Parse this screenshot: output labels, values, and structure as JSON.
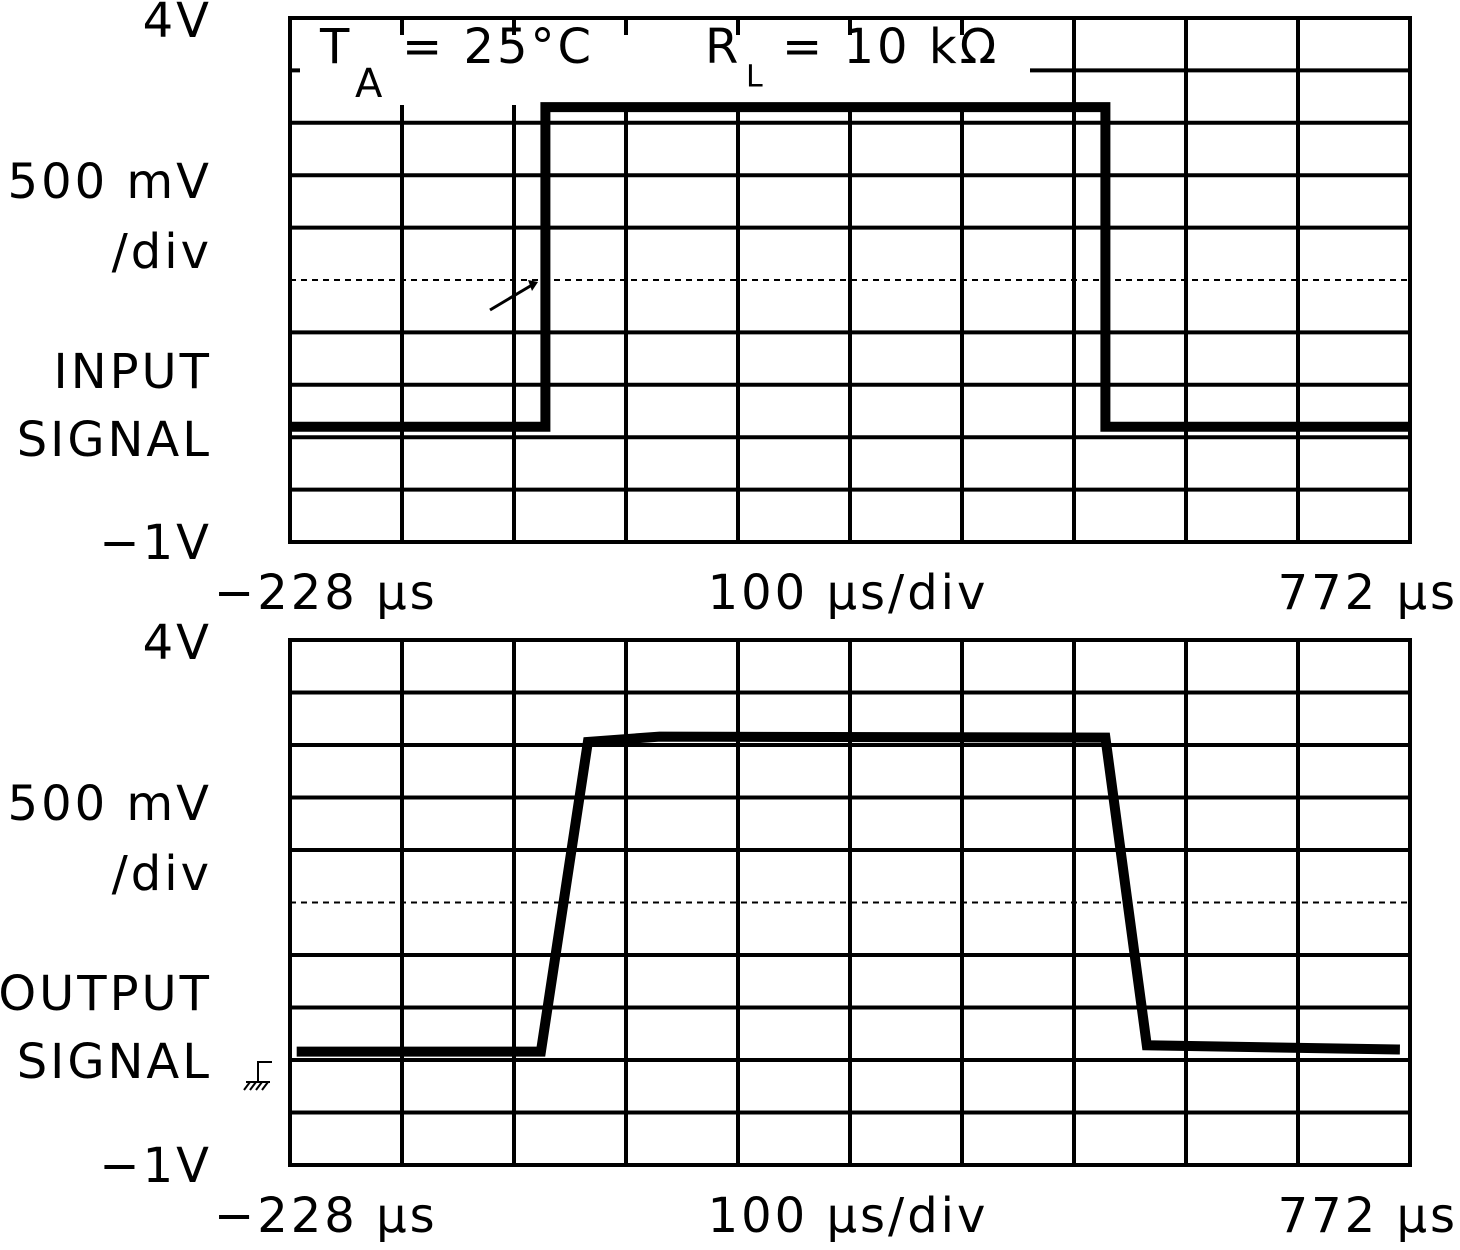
{
  "chart_data": [
    {
      "type": "line",
      "color": "#000000",
      "y_label": [
        "500 mV",
        "/div"
      ],
      "signal_label": [
        "INPUT",
        "SIGNAL"
      ],
      "annotation": [
        "T",
        "A",
        "= 25°C",
        "R",
        "L",
        "= 10 kΩ"
      ],
      "x_label": "100 µs/div",
      "x": [
        -228,
        0,
        0,
        500,
        500,
        772
      ],
      "values": [
        0.1,
        0.1,
        3.15,
        3.15,
        0.1,
        0.1
      ],
      "xlim": [
        -228,
        772
      ],
      "ylim": [
        -1,
        4
      ],
      "xticks": [
        {
          "value": -228,
          "label": "−228 µs"
        },
        {
          "value": 772,
          "label": "772 µs"
        }
      ],
      "yticks": [
        {
          "value": 4,
          "label": "4V"
        },
        {
          "value": -1,
          "label": "−1V"
        }
      ]
    },
    {
      "type": "line",
      "color": "#000000",
      "y_label": [
        "500 mV",
        "/div"
      ],
      "signal_label": [
        "OUTPUT",
        "SIGNAL"
      ],
      "x_label": "100 µs/div",
      "x": [
        -222,
        -4,
        38,
        102,
        500,
        537,
        763
      ],
      "values": [
        0.08,
        0.08,
        3.03,
        3.08,
        3.07,
        0.14,
        0.1
      ],
      "xlim": [
        -228,
        772
      ],
      "ylim": [
        -1,
        4
      ],
      "xticks": [
        {
          "value": -228,
          "label": "−228 µs"
        },
        {
          "value": 772,
          "label": "772 µs"
        }
      ],
      "yticks": [
        {
          "value": 4,
          "label": "4V"
        },
        {
          "value": -1,
          "label": "−1V"
        }
      ]
    }
  ]
}
